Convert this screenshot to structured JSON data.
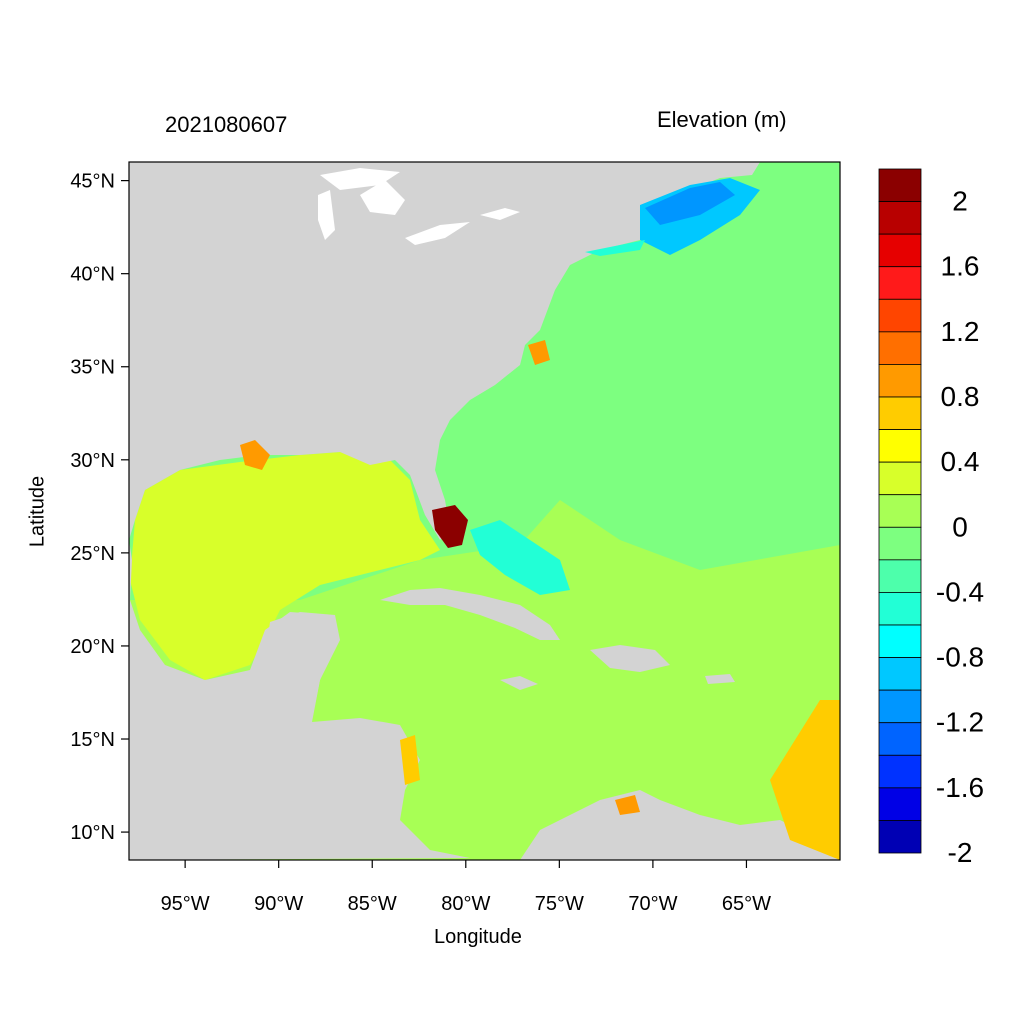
{
  "titles": {
    "left": "2021080607",
    "right": "Elevation (m)"
  },
  "axes": {
    "xlabel": "Longitude",
    "ylabel": "Latitude",
    "lon_range": [
      -98,
      -60
    ],
    "lat_range": [
      8.5,
      46
    ],
    "x_ticks": [
      {
        "value": -95,
        "label": "95°W"
      },
      {
        "value": -90,
        "label": "90°W"
      },
      {
        "value": -85,
        "label": "85°W"
      },
      {
        "value": -80,
        "label": "80°W"
      },
      {
        "value": -75,
        "label": "75°W"
      },
      {
        "value": -70,
        "label": "70°W"
      },
      {
        "value": -65,
        "label": "65°W"
      }
    ],
    "y_ticks": [
      {
        "value": 45,
        "label": "45°N"
      },
      {
        "value": 40,
        "label": "40°N"
      },
      {
        "value": 35,
        "label": "35°N"
      },
      {
        "value": 30,
        "label": "30°N"
      },
      {
        "value": 25,
        "label": "25°N"
      },
      {
        "value": 20,
        "label": "20°N"
      },
      {
        "value": 15,
        "label": "15°N"
      },
      {
        "value": 10,
        "label": "10°N"
      }
    ]
  },
  "colorbar": {
    "colors": [
      "#8b0000",
      "#b80000",
      "#e60000",
      "#ff1a1a",
      "#ff4500",
      "#ff6f00",
      "#ff9a00",
      "#ffcc00",
      "#ffff00",
      "#d8ff2a",
      "#a8ff55",
      "#7dff80",
      "#4dffab",
      "#22ffd6",
      "#00ffff",
      "#00c8ff",
      "#0096ff",
      "#0064ff",
      "#0032ff",
      "#0000e6",
      "#0000b4"
    ],
    "labels": [
      "2",
      "1.6",
      "1.2",
      "0.8",
      "0.4",
      "0",
      "-0.4",
      "-0.8",
      "-1.2",
      "-1.6",
      "-2"
    ]
  },
  "map_colors": {
    "land": "#d3d3d3",
    "lakes": "#ffffff",
    "atlantic": "#7dff80",
    "gulf": "#d8ff2a",
    "caribbean": "#a8ff55",
    "negative_low": "#22ffd6",
    "negative_mid": "#00c8ff",
    "negative_high": "#0096ff",
    "surge_high": "#8b0000",
    "surge_mid": "#ff9a00",
    "surge_low": "#ffcc00"
  }
}
